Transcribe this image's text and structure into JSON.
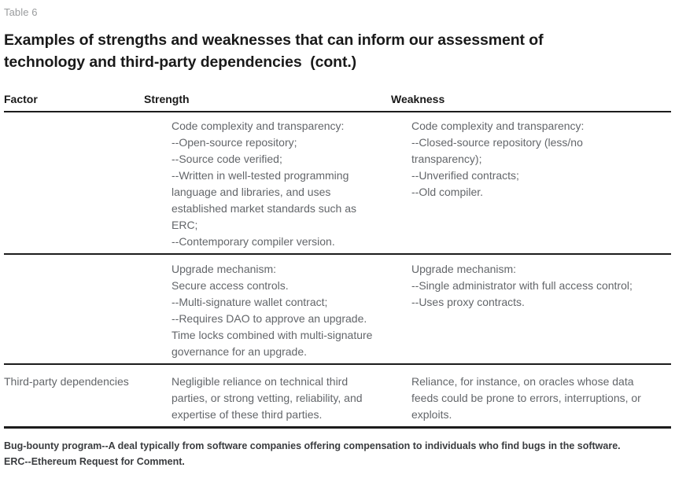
{
  "table_label": "Table 6",
  "title_lines": [
    "Examples of strengths and weaknesses that can inform our assessment of",
    "technology and third-party dependencies  (cont.)"
  ],
  "columns": {
    "factor": "Factor",
    "strength": "Strength",
    "weakness": "Weakness"
  },
  "rows": [
    {
      "factor": "",
      "strength_items": [
        "Code complexity and transparency:",
        "--Open-source repository;",
        "--Source code verified;",
        "--Written in well-tested programming language and libraries, and uses established market standards such as ERC;",
        "--Contemporary compiler version."
      ],
      "weakness_items": [
        "Code complexity and transparency:",
        "--Closed-source repository (less/no transparency);",
        "--Unverified contracts;",
        "--Old compiler."
      ]
    },
    {
      "factor": "",
      "strength_items": [
        "Upgrade mechanism:",
        "Secure access controls.",
        "--Multi-signature wallet contract;",
        "--Requires DAO to approve an upgrade. Time locks combined with multi-signature governance for an upgrade."
      ],
      "weakness_items": [
        "Upgrade mechanism:",
        "--Single administrator with full access control;",
        "--Uses proxy contracts."
      ]
    },
    {
      "factor": "Third-party dependencies",
      "strength_items": [
        "Negligible reliance on technical third parties, or strong vetting, reliability, and expertise of these third parties."
      ],
      "weakness_items": [
        "Reliance, for instance, on oracles whose data feeds could be prone to errors, interruptions, or exploits."
      ]
    }
  ],
  "footnotes": [
    "Bug-bounty program--A deal typically from software companies offering compensation to individuals who find bugs in the software.",
    "ERC--Ethereum Request for Comment."
  ],
  "colors": {
    "rule": "#1c1c1c",
    "heading_text": "#191919",
    "body_text": "#63666a",
    "muted_label": "#9a9c9e",
    "footnote_text": "#3a3c3f",
    "background": "#ffffff"
  }
}
